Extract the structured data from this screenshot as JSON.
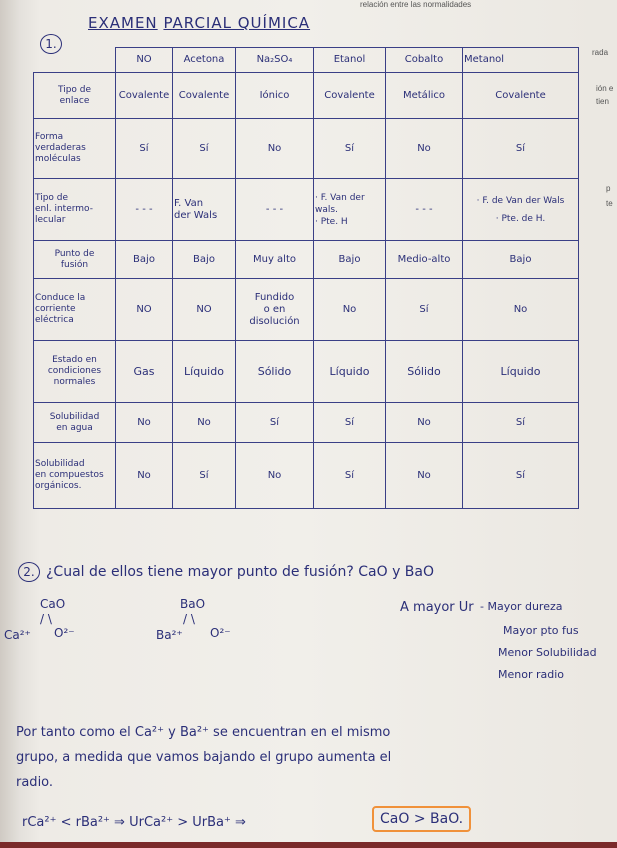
{
  "printed_header": "relación entre las normalidades",
  "margin_fragments": [
    "rada",
    "ión e",
    "tien",
    "p",
    "te"
  ],
  "title": {
    "part1": "EXAMEN",
    "part2": "PARCIAL QUÍMICA"
  },
  "question1": {
    "number": "1.",
    "columns": [
      "NO",
      "Acetona",
      "Na₂SO₄",
      "Etanol",
      "Cobalto",
      "Metanol"
    ],
    "rows": [
      {
        "label": "Tipo de\nenlace",
        "cells": [
          "Covalente",
          "Covalente",
          "Iónico",
          "Covalente",
          "Metálico",
          "Covalente"
        ]
      },
      {
        "label": "Forma\nverdaderas\nmoléculas",
        "cells": [
          "Sí",
          "Sí",
          "No",
          "Sí",
          "No",
          "Sí"
        ]
      },
      {
        "label": "Tipo de\nenl. intermo-\nlecular",
        "cells": [
          "- - -",
          "F. Van\nder Wals",
          "- - -",
          "· F. Van der\nwals.\n· Pte. H",
          "- - -",
          "· F. de Van der Wals\n· Pte. de H."
        ]
      },
      {
        "label": "Punto de\nfusión",
        "cells": [
          "Bajo",
          "Bajo",
          "Muy alto",
          "Bajo",
          "Medio-alto",
          "Bajo"
        ]
      },
      {
        "label": "Conduce la\ncorriente\neléctrica",
        "cells": [
          "NO",
          "NO",
          "Fundido\no en\ndisolución",
          "No",
          "Sí",
          "No"
        ]
      },
      {
        "label": "Estado en\ncondiciones\nnormales",
        "cells": [
          "Gas",
          "Líquido",
          "Sólido",
          "Líquido",
          "Sólido",
          "Líquido"
        ]
      },
      {
        "label": "Solubilidad\nen agua",
        "cells": [
          "No",
          "No",
          "Sí",
          "Sí",
          "No",
          "Sí"
        ]
      },
      {
        "label": "Solubilidad\nen compuestos\norgánicos.",
        "cells": [
          "No",
          "Sí",
          "No",
          "Sí",
          "No",
          "Sí"
        ]
      }
    ]
  },
  "question2": {
    "number": "2.",
    "question": "¿Cual de ellos tiene mayor punto de fusión? CaO y BaO",
    "cao": {
      "formula": "CaO",
      "cation": "Ca²⁺",
      "anion": "O²⁻"
    },
    "bao": {
      "formula": "BaO",
      "cation": "Ba²⁺",
      "anion": "O²⁻"
    },
    "notes_head": "A mayor Ur",
    "notes": [
      "- Mayor dureza",
      "Mayor pto fus",
      "Menor Solubilidad",
      "Menor radio"
    ],
    "paragraph": [
      "Por tanto como el Ca²⁺ y Ba²⁺ se encuentran en el mismo",
      "grupo, a medida que vamos bajando el grupo aumenta el",
      "radio."
    ],
    "equation": "rCa²⁺ < rBa²⁺ ⇒ UrCa²⁺ > UrBa⁺ ⇒",
    "answer": "CaO > BaO.",
    "answer_box_color": "#f0913a"
  }
}
